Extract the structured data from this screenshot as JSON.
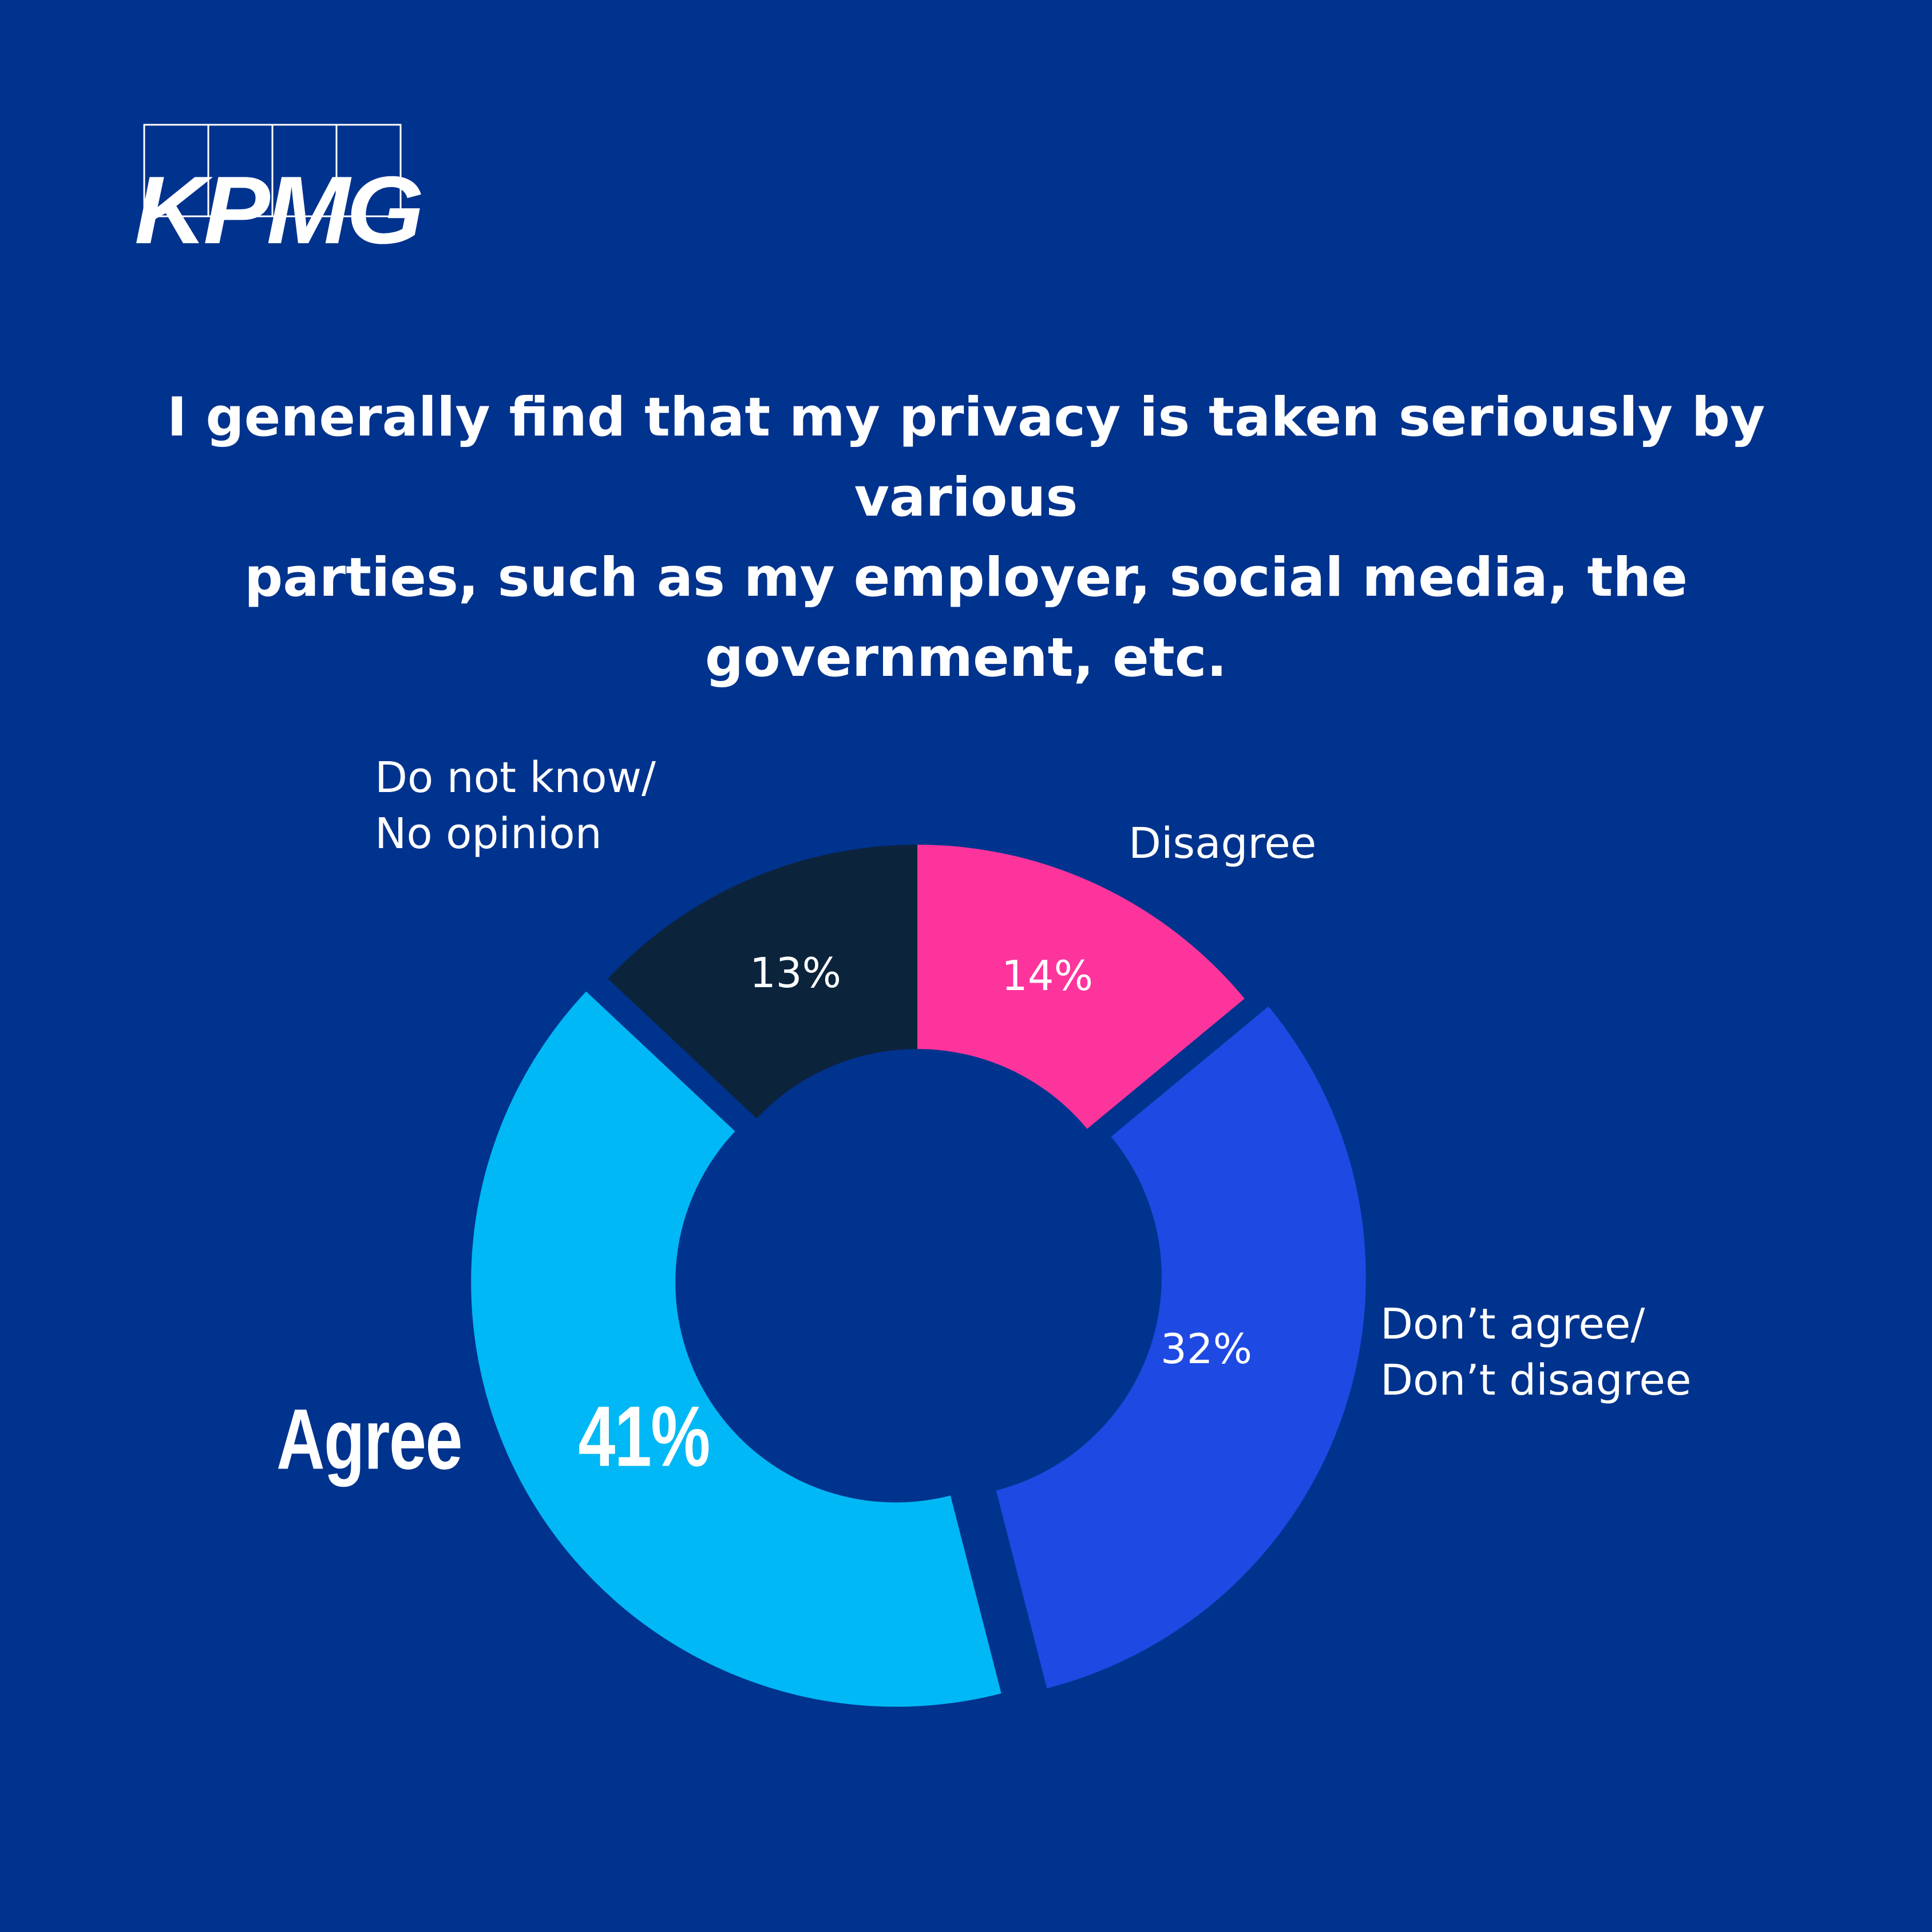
{
  "brand": {
    "logo_text": "KPMG"
  },
  "title_lines": [
    "I generally find that my privacy is taken seriously by various",
    "parties, such as my employer, social media, the",
    "government, etc."
  ],
  "chart_data": {
    "type": "pie",
    "style": "donut",
    "slices": [
      {
        "label": "Disagree",
        "label_lines": [
          "Disagree"
        ],
        "value": 14,
        "value_label": "14%",
        "color": "#FD349C"
      },
      {
        "label": "Don’t agree/ Don’t disagree",
        "label_lines": [
          "Don’t agree/",
          "Don’t disagree"
        ],
        "value": 32,
        "value_label": "32%",
        "color": "#1E49E2"
      },
      {
        "label": "Agree",
        "label_lines": [
          "Agree"
        ],
        "value": 41,
        "value_label": "41%",
        "color": "#00B8F5",
        "highlighted": true
      },
      {
        "label": "Do not know/ No opinion",
        "label_lines": [
          "Do not know/",
          "No opinion"
        ],
        "value": 13,
        "value_label": "13%",
        "color": "#0C233C"
      }
    ]
  },
  "colors": {
    "background": "#00338D",
    "text": "#FFFFFF"
  }
}
